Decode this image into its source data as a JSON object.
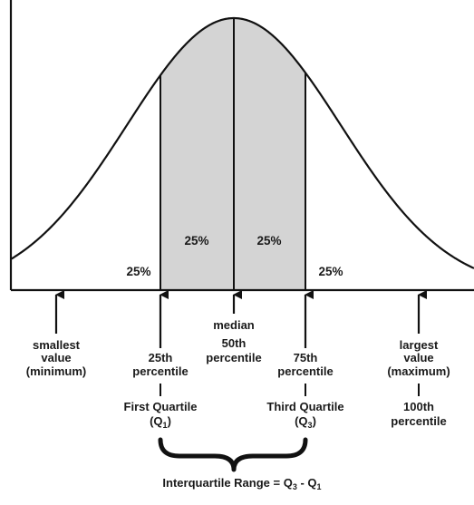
{
  "labels": {
    "pct_left_tail": "25%",
    "pct_q1_median": "25%",
    "pct_median_q3": "25%",
    "pct_right_tail": "25%",
    "median": "median",
    "fiftieth": "50th",
    "percentile_50": "percentile",
    "smallest_l1": "smallest",
    "smallest_l2": "value",
    "smallest_l3": "(minimum)",
    "p25_l1": "25th",
    "p25_l2": "percentile",
    "p75_l1": "75th",
    "p75_l2": "percentile",
    "largest_l1": "largest",
    "largest_l2": "value",
    "largest_l3": "(maximum)",
    "first_quartile": "First Quartile",
    "q1_paren_open": "(Q",
    "q1_sub": "1",
    "q1_paren_close": ")",
    "third_quartile": "Third Quartile",
    "q3_paren_open": "(Q",
    "q3_sub": "3",
    "q3_paren_close": ")",
    "p100_l1": "100th",
    "p100_l2": "percentile",
    "iqr_prefix": "Interquartile Range = ",
    "iqr_q3": "Q",
    "iqr_q3_sub": "3",
    "iqr_minus": " - ",
    "iqr_q1": "Q",
    "iqr_q1_sub": "1"
  },
  "colors": {
    "shade": "#d4d4d4",
    "ink": "#111111"
  }
}
